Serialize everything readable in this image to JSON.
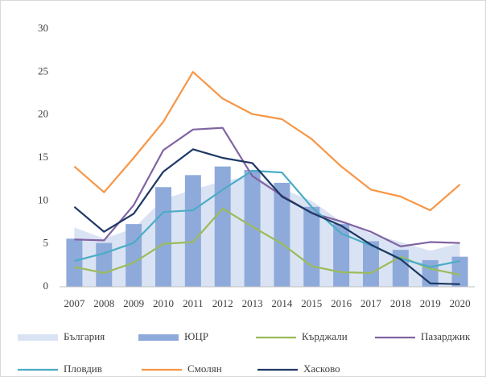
{
  "chart_data": {
    "type": "combo",
    "categories": [
      "2007",
      "2008",
      "2009",
      "2010",
      "2011",
      "2012",
      "2013",
      "2014",
      "2015",
      "2016",
      "2017",
      "2018",
      "2019",
      "2020"
    ],
    "ylim": [
      0,
      30
    ],
    "yticks": [
      0,
      5,
      10,
      15,
      20,
      25,
      30
    ],
    "grid": false,
    "legend": "bottom",
    "series": [
      {
        "name": "България",
        "type": "area",
        "color": "#dae3f3",
        "values": [
          6.9,
          5.6,
          6.8,
          10.2,
          11.3,
          12.3,
          12.9,
          11.4,
          10.0,
          7.6,
          6.2,
          5.2,
          4.2,
          5.1
        ]
      },
      {
        "name": "ЮЦР",
        "type": "bar",
        "color": "#8eaadb",
        "values": [
          5.6,
          5.1,
          7.3,
          11.6,
          13.0,
          14.0,
          13.6,
          12.1,
          9.3,
          7.3,
          5.3,
          4.3,
          3.1,
          3.5
        ]
      },
      {
        "name": "Кърджали",
        "type": "line",
        "color": "#9bbb59",
        "values": [
          2.3,
          1.6,
          2.8,
          5.0,
          5.2,
          9.1,
          7.0,
          5.0,
          2.4,
          1.7,
          1.6,
          3.5,
          2.1,
          1.4
        ]
      },
      {
        "name": "Пазарджик",
        "type": "line",
        "color": "#8064a2",
        "values": [
          5.5,
          5.4,
          9.5,
          15.9,
          18.3,
          18.5,
          12.9,
          10.6,
          8.6,
          7.6,
          6.4,
          4.7,
          5.2,
          5.1
        ]
      },
      {
        "name": "Пловдив",
        "type": "line",
        "color": "#4bacc6",
        "values": [
          3.0,
          3.9,
          5.1,
          8.7,
          8.9,
          11.3,
          13.5,
          13.3,
          9.3,
          6.2,
          4.8,
          3.3,
          2.3,
          3.0
        ]
      },
      {
        "name": "Смолян",
        "type": "line",
        "color": "#f79646",
        "values": [
          14.0,
          11.0,
          15.0,
          19.2,
          25.0,
          21.9,
          20.1,
          19.5,
          17.2,
          14.0,
          11.3,
          10.5,
          8.9,
          11.9
        ]
      },
      {
        "name": "Хасково",
        "type": "line",
        "color": "#1f3864",
        "values": [
          9.3,
          6.4,
          8.5,
          13.4,
          16.0,
          15.0,
          14.4,
          10.5,
          8.6,
          7.1,
          4.9,
          3.2,
          0.4,
          0.3
        ]
      }
    ]
  }
}
